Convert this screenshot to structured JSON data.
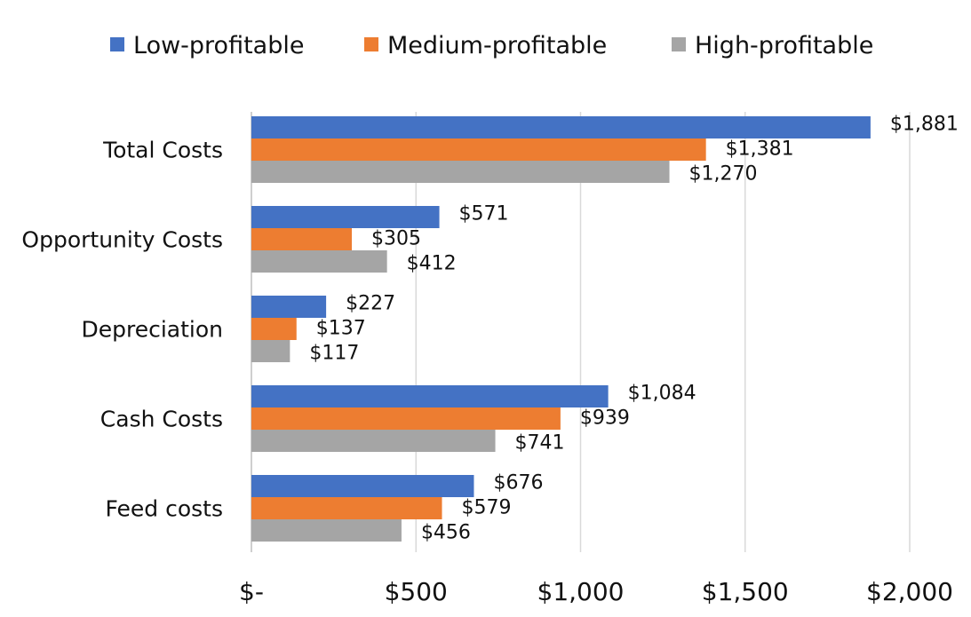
{
  "chart_data": {
    "type": "bar",
    "orientation": "horizontal",
    "categories": [
      "Total Costs",
      "Opportunity Costs",
      "Depreciation",
      "Cash Costs",
      "Feed costs"
    ],
    "series": [
      {
        "name": "Low-profitable",
        "color": "#4472C4",
        "values": [
          1881,
          571,
          227,
          1084,
          676
        ],
        "labels": [
          "$1,881",
          "$571",
          "$227",
          "$1,084",
          "$676"
        ]
      },
      {
        "name": "Medium-profitable",
        "color": "#ED7D31",
        "values": [
          1381,
          305,
          137,
          939,
          579
        ],
        "labels": [
          "$1,381",
          "$305",
          "$137",
          "$939",
          "$579"
        ]
      },
      {
        "name": "High-profitable",
        "color": "#A5A5A5",
        "values": [
          1270,
          412,
          117,
          741,
          456
        ],
        "labels": [
          "$1,270",
          "$412",
          "$117",
          "$741",
          "$456"
        ]
      }
    ],
    "xlim": [
      0,
      2000
    ],
    "xticks": [
      0,
      500,
      1000,
      1500,
      2000
    ],
    "xtick_labels": [
      "$-",
      "$500",
      "$1,000",
      "$1,500",
      "$2,000"
    ],
    "grid": "vertical",
    "legend": "top"
  }
}
